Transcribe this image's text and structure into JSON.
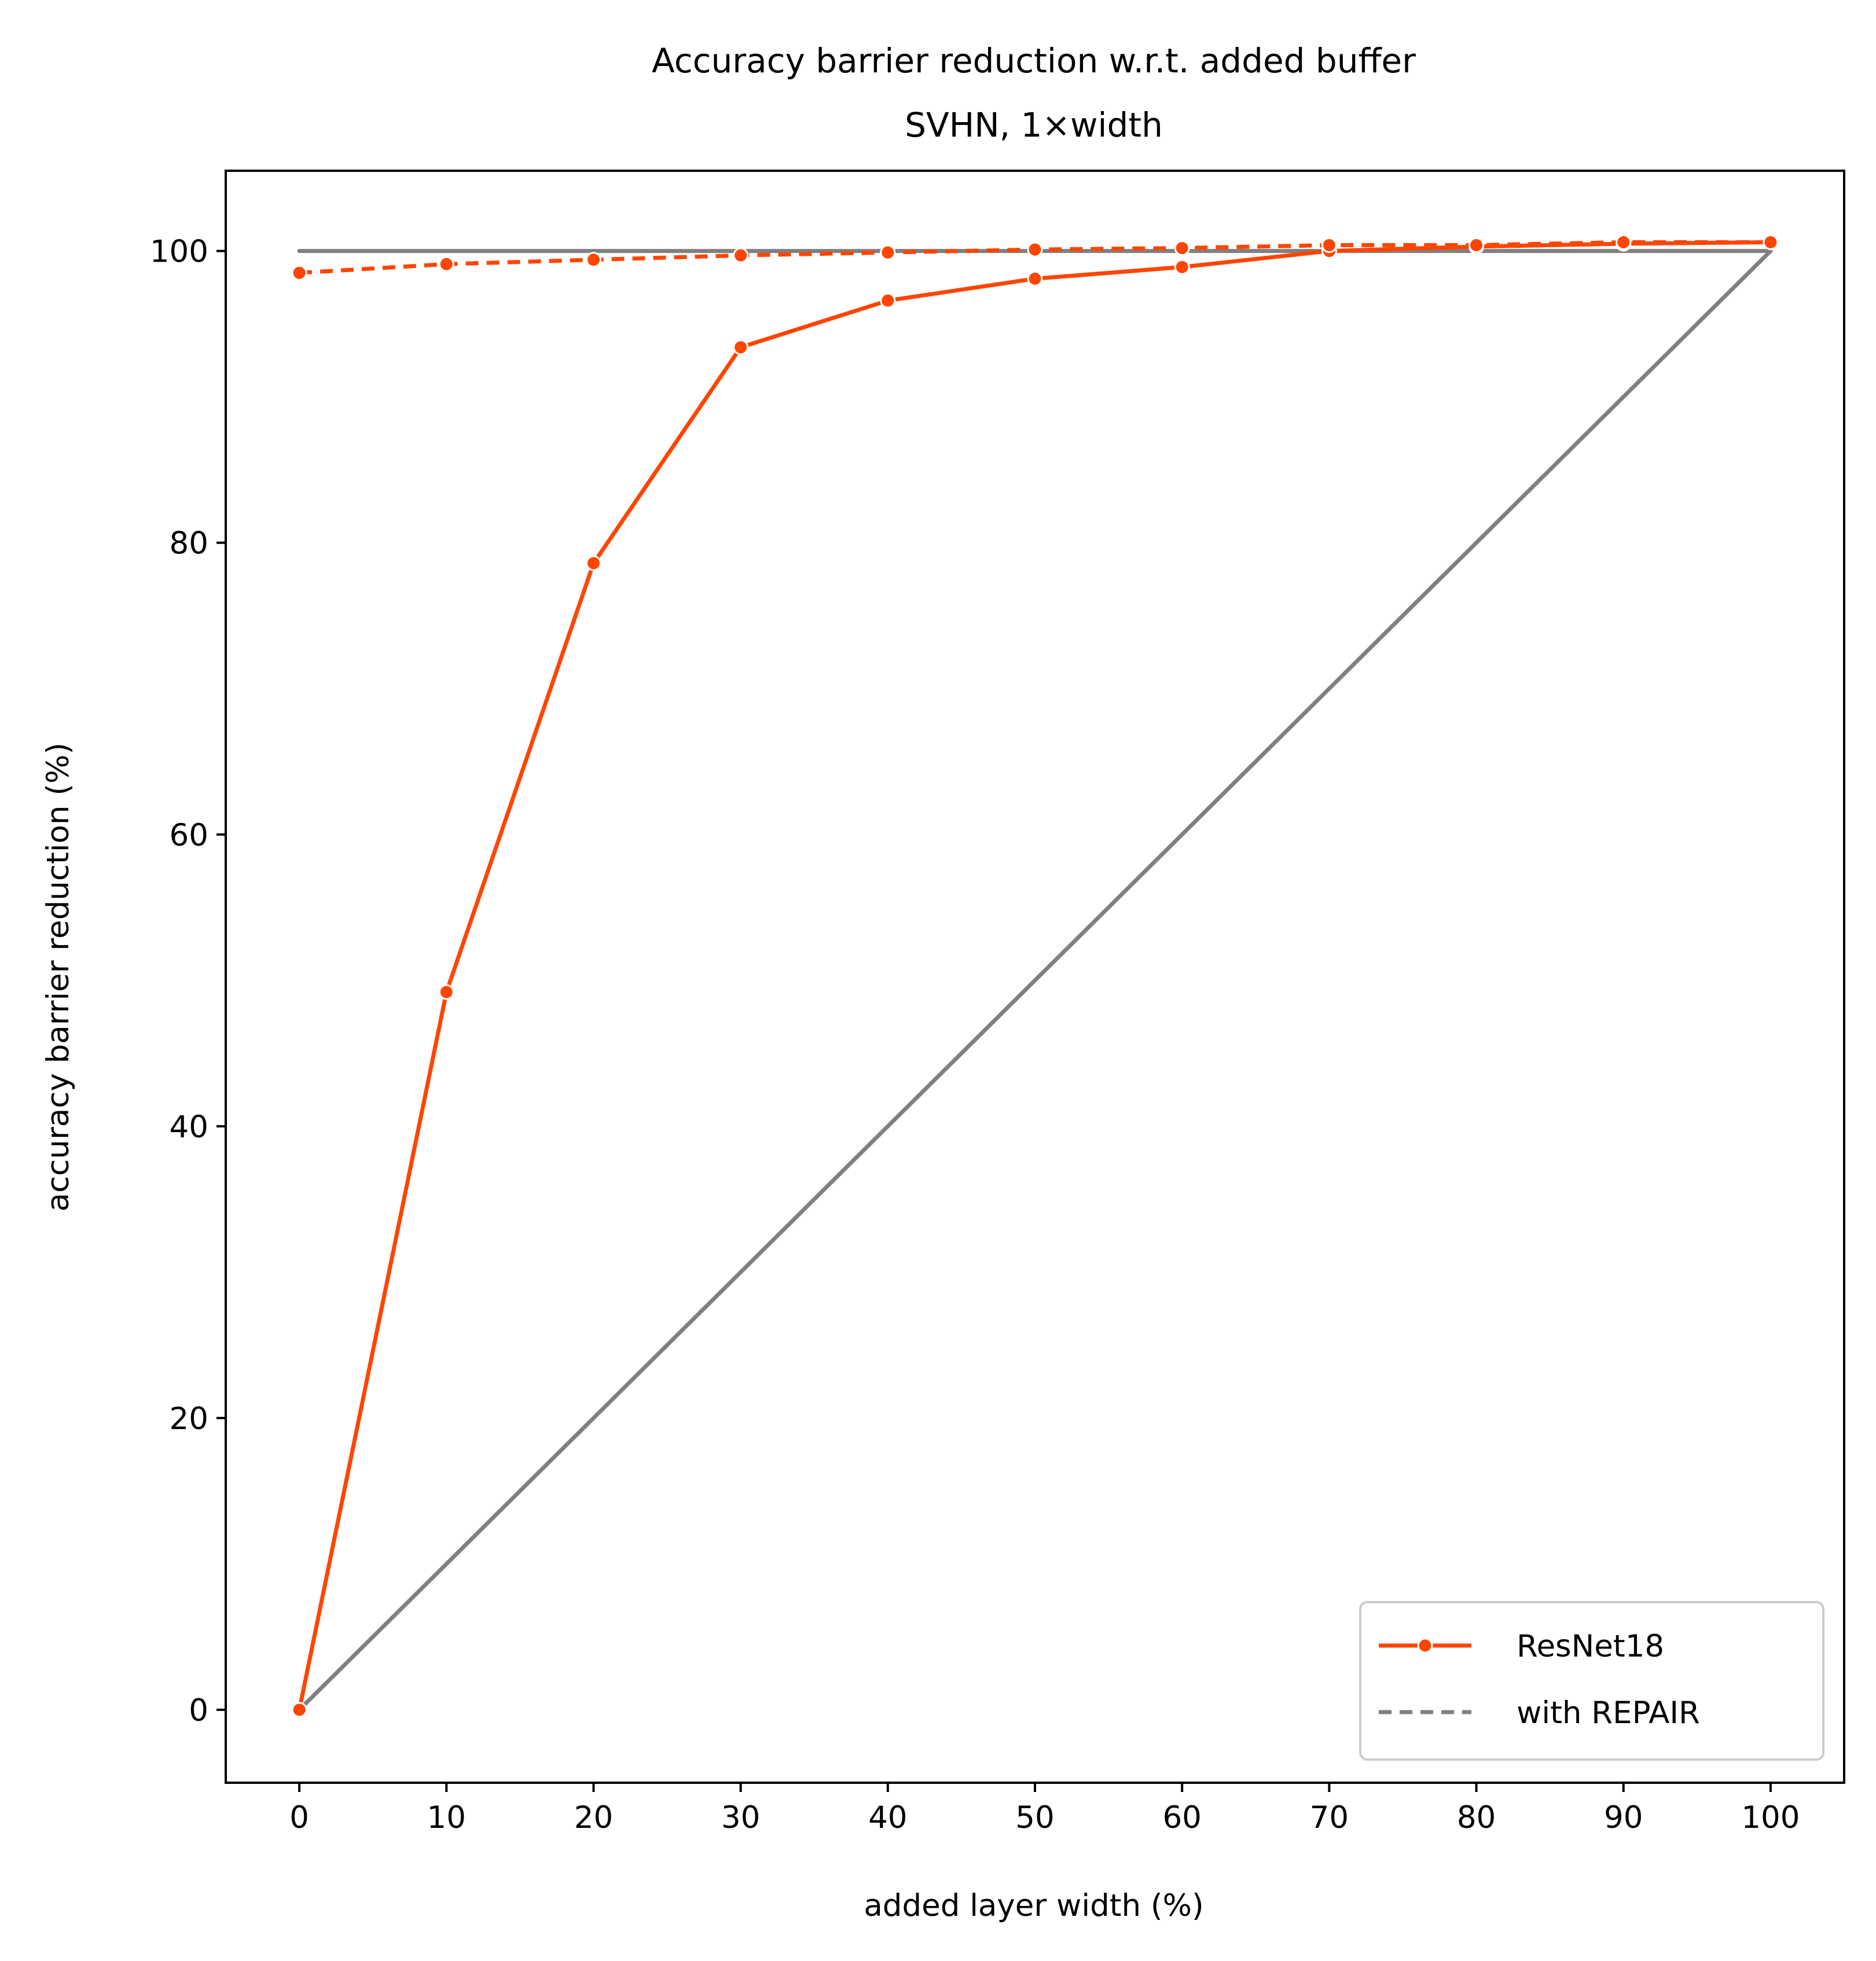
{
  "chart_data": {
    "type": "line",
    "title": "Accuracy barrier reduction w.r.t. added buffer",
    "subtitle": "SVHN, 1×width",
    "xlabel": "added layer width (%)",
    "ylabel": "accuracy barrier reduction (%)",
    "xlim": [
      -5,
      105
    ],
    "ylim": [
      -5,
      105.5
    ],
    "x_ticks": [
      0,
      10,
      20,
      30,
      40,
      50,
      60,
      70,
      80,
      90,
      100
    ],
    "x_tick_labels": [
      "0",
      "10",
      "20",
      "30",
      "40",
      "50",
      "60",
      "70",
      "80",
      "90",
      "100"
    ],
    "y_ticks": [
      0,
      20,
      40,
      60,
      80,
      100
    ],
    "y_tick_labels": [
      "0",
      "20",
      "40",
      "60",
      "80",
      "100"
    ],
    "grid": false,
    "legend_position": "bottom-right",
    "legend": [
      {
        "label": "ResNet18",
        "style": "solid-marker",
        "color": "#FF4500"
      },
      {
        "label": "with REPAIR",
        "style": "dashed",
        "color": "#808080"
      }
    ],
    "reference_lines": [
      {
        "x": [
          0,
          100
        ],
        "y": [
          100,
          100
        ],
        "color": "#808080"
      },
      {
        "x": [
          0,
          100
        ],
        "y": [
          0,
          100
        ],
        "color": "#808080"
      }
    ],
    "series": [
      {
        "name": "ResNet18",
        "color": "#FF4500",
        "style": "solid",
        "x": [
          0,
          10,
          20,
          30,
          40,
          50,
          60,
          70,
          80,
          90,
          100
        ],
        "y": [
          0,
          49.2,
          78.6,
          93.4,
          96.6,
          98.1,
          98.9,
          100.0,
          100.3,
          100.5,
          100.6
        ]
      },
      {
        "name": "ResNet18 with REPAIR",
        "color": "#FF4500",
        "style": "dashed",
        "x": [
          0,
          10,
          20,
          30,
          40,
          50,
          60,
          70,
          80,
          90,
          100
        ],
        "y": [
          98.5,
          99.1,
          99.4,
          99.7,
          99.9,
          100.1,
          100.2,
          100.4,
          100.4,
          100.6,
          100.6
        ]
      }
    ]
  }
}
